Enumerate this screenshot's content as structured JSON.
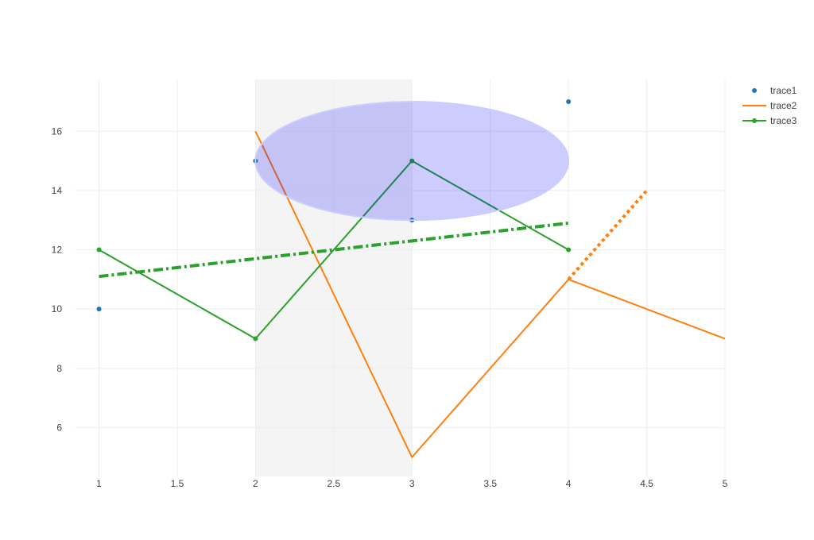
{
  "chart_data": {
    "type": "line",
    "title": "",
    "xlabel": "",
    "ylabel": "",
    "xlim": [
      0.85,
      5
    ],
    "ylim": [
      4.35,
      17.75
    ],
    "x_ticks": [
      1,
      1.5,
      2,
      2.5,
      3,
      3.5,
      4,
      4.5,
      5
    ],
    "x_tick_labels": [
      "1",
      "1.5",
      "2",
      "2.5",
      "3",
      "3.5",
      "4",
      "4.5",
      "5"
    ],
    "y_ticks": [
      6,
      8,
      10,
      12,
      14,
      16
    ],
    "y_tick_labels": [
      "6",
      "8",
      "10",
      "12",
      "14",
      "16"
    ],
    "grid": true,
    "legend_position": "top-right",
    "series": [
      {
        "name": "trace1",
        "mode": "markers",
        "color": "#1f77b4",
        "x": [
          1,
          2,
          3,
          4
        ],
        "y": [
          10,
          15,
          13,
          17
        ]
      },
      {
        "name": "trace2",
        "mode": "lines",
        "color": "#ff7f0e",
        "x": [
          2,
          3,
          4,
          5
        ],
        "y": [
          16,
          5,
          11,
          9
        ]
      },
      {
        "name": "trace3",
        "mode": "lines+markers",
        "color": "#2ca02c",
        "x": [
          1,
          2,
          3,
          4
        ],
        "y": [
          12,
          9,
          15,
          12
        ]
      }
    ],
    "shapes": [
      {
        "type": "rect",
        "xref": "x",
        "yref": "paper",
        "x0": 2,
        "x1": 3,
        "fill": "#d3d3d3",
        "opacity": 0.25
      },
      {
        "type": "circle",
        "x0": 2,
        "x1": 4,
        "y0": 13,
        "y1": 17,
        "fill": "#0000ff",
        "opacity": 0.2,
        "line_color": "#ccccff"
      },
      {
        "type": "line",
        "x0": 1,
        "y0": 11.1,
        "x1": 4,
        "y1": 12.9,
        "color": "#2ca02c",
        "dash": "dashdot"
      },
      {
        "type": "line",
        "x0": 4,
        "y0": 11,
        "x1": 4.5,
        "y1": 14,
        "color": "#ff7f0e",
        "dash": "dot"
      }
    ]
  }
}
